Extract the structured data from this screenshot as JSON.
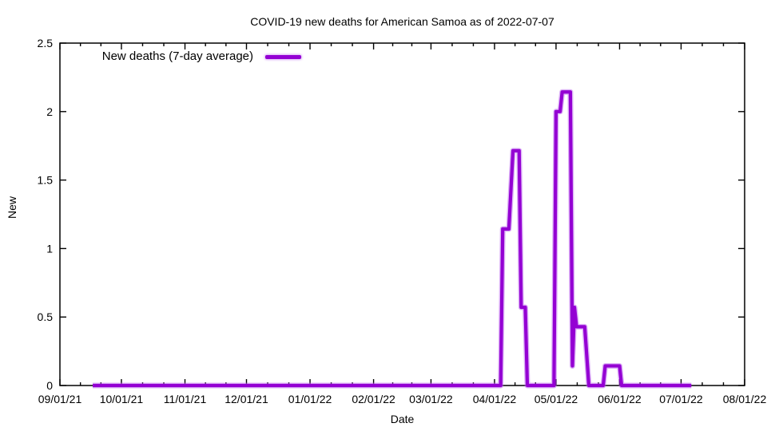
{
  "title": "COVID-19 new deaths for American Samoa as of 2022-07-07",
  "legend": {
    "label": "New deaths (7-day average)"
  },
  "x_axis": {
    "label": "Date"
  },
  "y_axis": {
    "label": "New"
  },
  "colors": {
    "line": "#9400d3",
    "line_halo": "rgba(187,102,240,0.5)",
    "axis": "#000000",
    "text": "#000000",
    "background": "#ffffff"
  },
  "chart_data": {
    "type": "line",
    "title": "COVID-19 new deaths for American Samoa as of 2022-07-07",
    "xlabel": "Date",
    "ylabel": "New",
    "x_start": "2021-09-01",
    "x_end": "2022-08-01",
    "ylim": [
      0,
      2.5
    ],
    "grid": false,
    "legend_position": "top-left",
    "y_ticks": [
      0,
      0.5,
      1,
      1.5,
      2,
      2.5
    ],
    "y_tick_labels": [
      "0",
      "0.5",
      "1",
      "1.5",
      "2",
      "2.5"
    ],
    "x_ticks": [
      {
        "date": "2021-09-01",
        "label": "09/01/21"
      },
      {
        "date": "2021-10-01",
        "label": "10/01/21"
      },
      {
        "date": "2021-11-01",
        "label": "11/01/21"
      },
      {
        "date": "2021-12-01",
        "label": "12/01/21"
      },
      {
        "date": "2022-01-01",
        "label": "01/01/22"
      },
      {
        "date": "2022-02-01",
        "label": "02/01/22"
      },
      {
        "date": "2022-03-01",
        "label": "03/01/22"
      },
      {
        "date": "2022-04-01",
        "label": "04/01/22"
      },
      {
        "date": "2022-05-01",
        "label": "05/01/22"
      },
      {
        "date": "2022-06-01",
        "label": "06/01/22"
      },
      {
        "date": "2022-07-01",
        "label": "07/01/22"
      },
      {
        "date": "2022-08-01",
        "label": "08/01/22"
      }
    ],
    "minor_x_divisions": 3,
    "series": [
      {
        "name": "New deaths (7-day average)",
        "color": "#9400d3",
        "points": [
          [
            "2021-09-17",
            0
          ],
          [
            "2022-04-04",
            0
          ],
          [
            "2022-04-05",
            1.143
          ],
          [
            "2022-04-08",
            1.143
          ],
          [
            "2022-04-10",
            1.714
          ],
          [
            "2022-04-13",
            1.714
          ],
          [
            "2022-04-14",
            0.571
          ],
          [
            "2022-04-16",
            0.571
          ],
          [
            "2022-04-17",
            0
          ],
          [
            "2022-04-30",
            0
          ],
          [
            "2022-05-01",
            2.0
          ],
          [
            "2022-05-03",
            2.0
          ],
          [
            "2022-05-04",
            2.143
          ],
          [
            "2022-05-08",
            2.143
          ],
          [
            "2022-05-09",
            0.143
          ],
          [
            "2022-05-10",
            0.571
          ],
          [
            "2022-05-11",
            0.429
          ],
          [
            "2022-05-15",
            0.429
          ],
          [
            "2022-05-17",
            0
          ],
          [
            "2022-05-24",
            0
          ],
          [
            "2022-05-25",
            0.143
          ],
          [
            "2022-06-01",
            0.143
          ],
          [
            "2022-06-02",
            0
          ],
          [
            "2022-07-06",
            0
          ]
        ]
      }
    ]
  }
}
